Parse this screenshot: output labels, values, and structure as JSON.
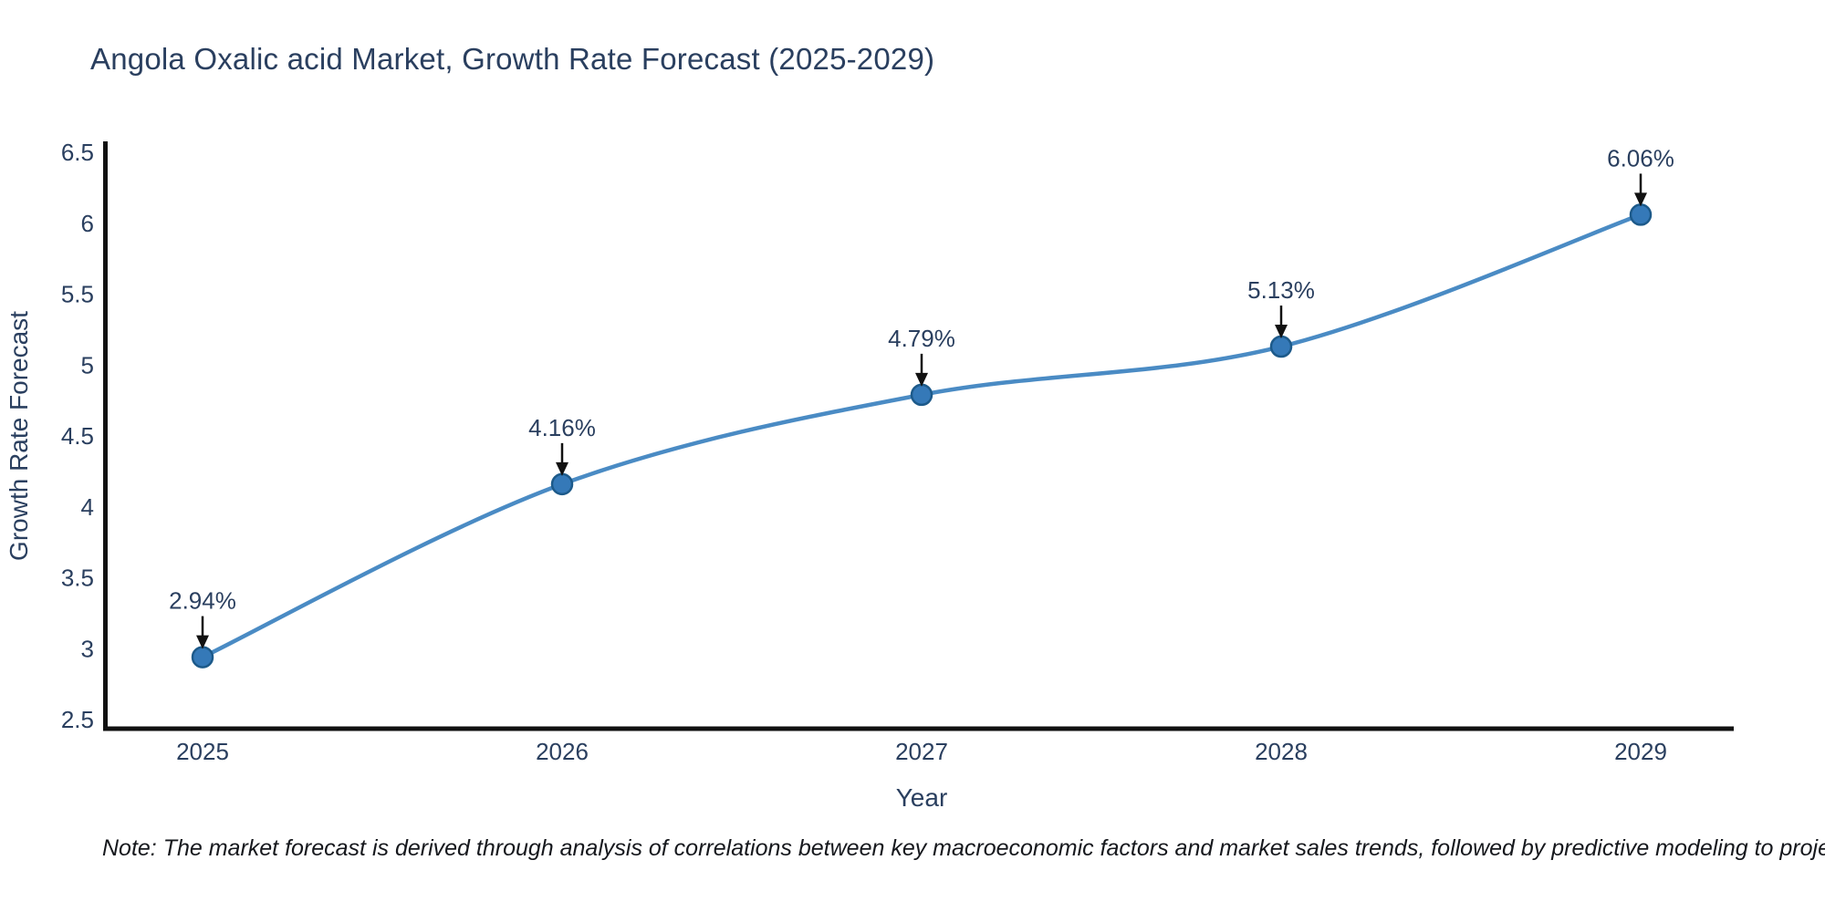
{
  "note": {
    "text": "Note: The market forecast is derived through analysis of correlations between key macroeconomic factors and market sales trends, followed by predictive modeling to project future sales"
  },
  "chart_data": {
    "type": "line",
    "title": "Angola Oxalic acid Market, Growth Rate Forecast (2025-2029)",
    "xlabel": "Year",
    "ylabel": "Growth Rate Forecast",
    "x": [
      2025,
      2026,
      2027,
      2028,
      2029
    ],
    "y": [
      2.94,
      4.16,
      4.79,
      5.13,
      6.06
    ],
    "point_labels": [
      "2.94%",
      "4.16%",
      "4.79%",
      "5.13%",
      "6.06%"
    ],
    "x_tick_labels": [
      "2025",
      "2026",
      "2027",
      "2028",
      "2029"
    ],
    "y_tick_labels": [
      "6.5",
      "6",
      "5.5",
      "5",
      "4.5",
      "4",
      "3.5",
      "3",
      "2.5"
    ],
    "ylim": [
      2.5,
      6.5
    ],
    "line_shape": "spline",
    "grid": false,
    "legend": "none",
    "colors": {
      "line": "#4a8bc4",
      "marker_fill": "#3579b8",
      "marker_edge": "#1d5a8a",
      "axis": "#111111",
      "tick_text": "#2a3f5f",
      "annotation_text": "#2a3f5f",
      "arrow": "#111111"
    }
  }
}
